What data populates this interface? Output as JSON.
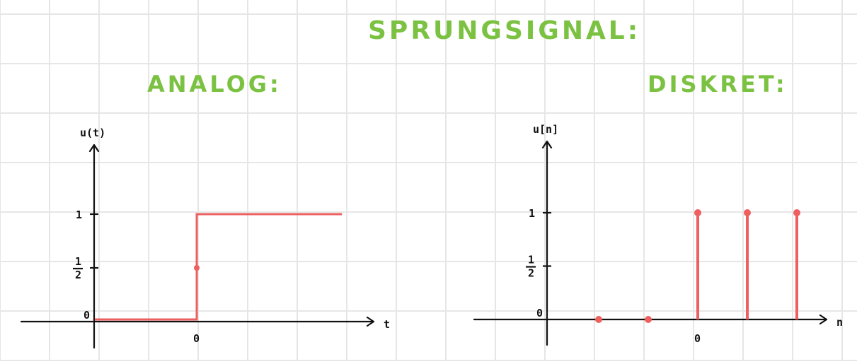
{
  "title": "SPRUNGSIGNAL:",
  "colors": {
    "title": "#7cc242",
    "signal": "#ee5f5f",
    "axis": "#111111",
    "grid": "#e6e6e6"
  },
  "chart_data": [
    {
      "type": "line",
      "title": "ANALOG:",
      "xlabel": "t",
      "ylabel": "u(t)",
      "x_tick_labels": [
        "0"
      ],
      "y_tick_labels": [
        "0",
        "1/2",
        "1"
      ],
      "series": [
        {
          "x": [
            -2,
            0,
            0,
            2.85
          ],
          "y": [
            0,
            0,
            1,
            1
          ]
        }
      ],
      "points": [
        {
          "x": 0,
          "y": 0.5
        }
      ]
    },
    {
      "type": "scatter",
      "title": "DISKRET:",
      "xlabel": "n",
      "ylabel": "u[n]",
      "x_tick_labels": [
        "0"
      ],
      "y_tick_labels": [
        "0",
        "1/2",
        "1"
      ],
      "stems": [
        {
          "n": -2,
          "value": 0
        },
        {
          "n": -1,
          "value": 0
        },
        {
          "n": 0,
          "value": 1
        },
        {
          "n": 1,
          "value": 1
        },
        {
          "n": 2,
          "value": 1
        }
      ]
    }
  ]
}
